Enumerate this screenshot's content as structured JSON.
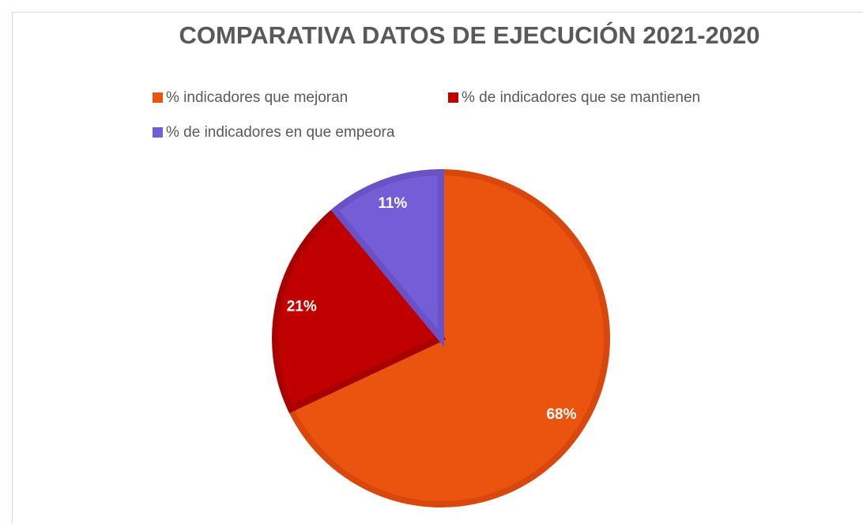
{
  "chart_data": {
    "type": "pie",
    "title": "COMPARATIVA DATOS DE EJECUCIÓN 2021-2020",
    "categories": [
      "% indicadores que mejoran",
      "% de indicadores que se mantienen",
      "% de indicadores en que empeora"
    ],
    "values": [
      68,
      21,
      11
    ],
    "value_labels": [
      "68%",
      "21%",
      "11%"
    ],
    "colors": [
      "#ea540e",
      "#c00000",
      "#745ed8"
    ],
    "border_colors": [
      "#d8480c",
      "#a80000",
      "#6a52c6"
    ],
    "legend": "top"
  }
}
